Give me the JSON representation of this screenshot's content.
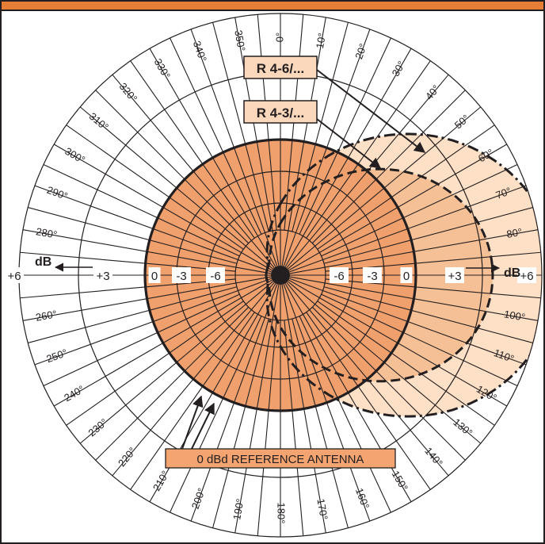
{
  "labels": {
    "r46": "R 4-6/...",
    "r43": "R 4-3/...",
    "reference": "0 dBd REFERENCE ANTENNA",
    "db_left": "dB",
    "db_right": "dB"
  },
  "scale": {
    "left": [
      "+6",
      "+3",
      "0",
      "-3",
      "-6"
    ],
    "right": [
      "-6",
      "-3",
      "0",
      "+3",
      "+6"
    ]
  },
  "angle_labels": [
    "0°",
    "10°",
    "20°",
    "30°",
    "40°",
    "50°",
    "60°",
    "70°",
    "80°",
    "100°",
    "110°",
    "120°",
    "130°",
    "140°",
    "150°",
    "160°",
    "170°",
    "180°",
    "190°",
    "200°",
    "210°",
    "220°",
    "230°",
    "240°",
    "250°",
    "260°",
    "280°",
    "290°",
    "300°",
    "310°",
    "320°",
    "330°",
    "340°",
    "350°"
  ],
  "colors": {
    "frame": "#231f20",
    "top_bar": "#e67e37",
    "reference_fill": "#f0a06d",
    "outer_lobe_fill": "#fde0c6",
    "inner_lobe_fill": "#f6c096",
    "label_box": "#fbd7bb",
    "reference_box": "#f4a470"
  }
}
